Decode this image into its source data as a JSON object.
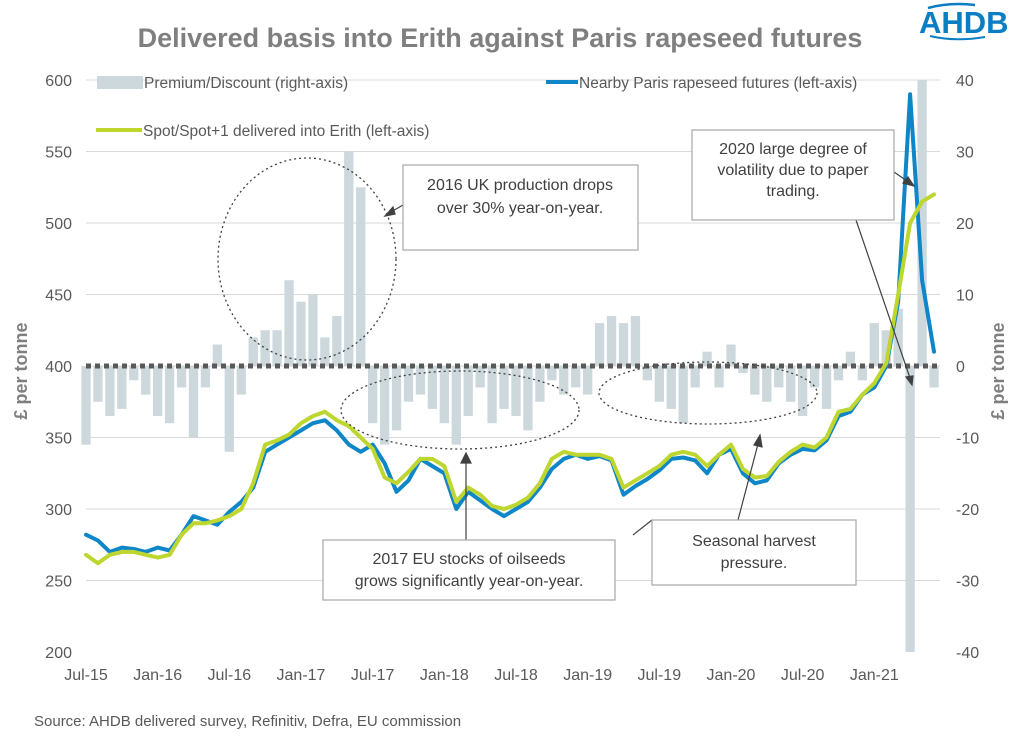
{
  "logo": {
    "text": "AHDB"
  },
  "source": "Source: AHDB delivered survey, Refinitiv, Defra, EU commission",
  "colors": {
    "futures": "#0e86c8",
    "delivered": "#bed62f",
    "premium": "#cdd8dd",
    "zero_line": "#595959",
    "gridline": "#d9d9d9",
    "annotation_border": "#a6a6a6"
  },
  "annotations": [
    {
      "lines": [
        "2016 UK production drops",
        "over 30% year-on-year."
      ]
    },
    {
      "lines": [
        "2020 large degree of",
        "volatility due to paper",
        "trading."
      ]
    },
    {
      "lines": [
        "2017 EU stocks of oilseeds",
        "grows significantly year-on-year."
      ]
    },
    {
      "lines": [
        "Seasonal harvest",
        "pressure."
      ]
    }
  ],
  "chart_data": {
    "type": "line",
    "title": "Delivered basis into Erith against Paris rapeseed futures",
    "ylabel": "£ per tonne",
    "y2label": "£ per tonne",
    "xlabel": "",
    "x_tick_labels": [
      "Jul-15",
      "Jan-16",
      "Jul-16",
      "Jan-17",
      "Jul-17",
      "Jan-18",
      "Jul-18",
      "Jan-19",
      "Jul-19",
      "Jan-20",
      "Jul-20",
      "Jan-21"
    ],
    "ylim": [
      200,
      600
    ],
    "y_ticks": [
      200,
      250,
      300,
      350,
      400,
      450,
      500,
      550,
      600
    ],
    "y2lim": [
      -40,
      40
    ],
    "y2_ticks": [
      -40,
      -30,
      -20,
      -10,
      0,
      10,
      20,
      30,
      40
    ],
    "grid": true,
    "legend_position": "top",
    "series": [
      {
        "name": "Premium/Discount (right-axis)",
        "type": "bar",
        "axis": "right",
        "x": [
          "2015-07",
          "2015-08",
          "2015-09",
          "2015-10",
          "2015-11",
          "2015-12",
          "2016-01",
          "2016-02",
          "2016-03",
          "2016-04",
          "2016-05",
          "2016-06",
          "2016-07",
          "2016-08",
          "2016-09",
          "2016-10",
          "2016-11",
          "2016-12",
          "2017-01",
          "2017-02",
          "2017-03",
          "2017-04",
          "2017-05",
          "2017-06",
          "2017-07",
          "2017-08",
          "2017-09",
          "2017-10",
          "2017-11",
          "2017-12",
          "2018-01",
          "2018-02",
          "2018-03",
          "2018-04",
          "2018-05",
          "2018-06",
          "2018-07",
          "2018-08",
          "2018-09",
          "2018-10",
          "2018-11",
          "2018-12",
          "2019-01",
          "2019-02",
          "2019-03",
          "2019-04",
          "2019-05",
          "2019-06",
          "2019-07",
          "2019-08",
          "2019-09",
          "2019-10",
          "2019-11",
          "2019-12",
          "2020-01",
          "2020-02",
          "2020-03",
          "2020-04",
          "2020-05",
          "2020-06",
          "2020-07",
          "2020-08",
          "2020-09",
          "2020-10",
          "2020-11",
          "2020-12",
          "2021-01",
          "2021-02",
          "2021-03",
          "2021-04",
          "2021-05",
          "2021-06"
        ],
        "values": [
          -11,
          -5,
          -7,
          -6,
          -2,
          -4,
          -7,
          -8,
          -3,
          -10,
          -3,
          3,
          -12,
          -4,
          4,
          5,
          5,
          12,
          9,
          10,
          4,
          7,
          30,
          25,
          -8,
          -11,
          -9,
          -5,
          -4,
          -6,
          -8,
          -11,
          -7,
          -3,
          -8,
          -6,
          -7,
          -9,
          -5,
          -2,
          -4,
          -3,
          -4,
          6,
          7,
          6,
          7,
          -2,
          -5,
          -6,
          -8,
          -3,
          2,
          -3,
          3,
          -1,
          -4,
          -5,
          -3,
          -5,
          -7,
          -3,
          -6,
          -2,
          2,
          -2,
          6,
          5,
          8,
          -40,
          40,
          -3
        ],
        "values_note": "monthly approximations"
      },
      {
        "name": "Nearby Paris rapeseed futures (left-axis)",
        "axis": "left",
        "x": [
          "2015-07",
          "2015-08",
          "2015-09",
          "2015-10",
          "2015-11",
          "2015-12",
          "2016-01",
          "2016-02",
          "2016-03",
          "2016-04",
          "2016-05",
          "2016-06",
          "2016-07",
          "2016-08",
          "2016-09",
          "2016-10",
          "2016-11",
          "2016-12",
          "2017-01",
          "2017-02",
          "2017-03",
          "2017-04",
          "2017-05",
          "2017-06",
          "2017-07",
          "2017-08",
          "2017-09",
          "2017-10",
          "2017-11",
          "2017-12",
          "2018-01",
          "2018-02",
          "2018-03",
          "2018-04",
          "2018-05",
          "2018-06",
          "2018-07",
          "2018-08",
          "2018-09",
          "2018-10",
          "2018-11",
          "2018-12",
          "2019-01",
          "2019-02",
          "2019-03",
          "2019-04",
          "2019-05",
          "2019-06",
          "2019-07",
          "2019-08",
          "2019-09",
          "2019-10",
          "2019-11",
          "2019-12",
          "2020-01",
          "2020-02",
          "2020-03",
          "2020-04",
          "2020-05",
          "2020-06",
          "2020-07",
          "2020-08",
          "2020-09",
          "2020-10",
          "2020-11",
          "2020-12",
          "2021-01",
          "2021-02",
          "2021-03",
          "2021-04",
          "2021-05",
          "2021-06"
        ],
        "values": [
          282,
          278,
          270,
          273,
          272,
          270,
          273,
          271,
          282,
          295,
          292,
          289,
          298,
          305,
          315,
          340,
          345,
          350,
          355,
          360,
          362,
          355,
          345,
          340,
          345,
          332,
          312,
          320,
          335,
          330,
          325,
          300,
          312,
          306,
          300,
          295,
          300,
          305,
          315,
          328,
          335,
          338,
          335,
          337,
          334,
          310,
          316,
          321,
          327,
          335,
          336,
          334,
          325,
          338,
          342,
          325,
          318,
          320,
          332,
          338,
          342,
          341,
          348,
          365,
          368,
          380,
          385,
          400,
          445,
          590,
          460,
          410
        ]
      },
      {
        "name": "Spot/Spot+1 delivered into Erith (left-axis)",
        "axis": "left",
        "x": [
          "2015-07",
          "2015-08",
          "2015-09",
          "2015-10",
          "2015-11",
          "2015-12",
          "2016-01",
          "2016-02",
          "2016-03",
          "2016-04",
          "2016-05",
          "2016-06",
          "2016-07",
          "2016-08",
          "2016-09",
          "2016-10",
          "2016-11",
          "2016-12",
          "2017-01",
          "2017-02",
          "2017-03",
          "2017-04",
          "2017-05",
          "2017-06",
          "2017-07",
          "2017-08",
          "2017-09",
          "2017-10",
          "2017-11",
          "2017-12",
          "2018-01",
          "2018-02",
          "2018-03",
          "2018-04",
          "2018-05",
          "2018-06",
          "2018-07",
          "2018-08",
          "2018-09",
          "2018-10",
          "2018-11",
          "2018-12",
          "2019-01",
          "2019-02",
          "2019-03",
          "2019-04",
          "2019-05",
          "2019-06",
          "2019-07",
          "2019-08",
          "2019-09",
          "2019-10",
          "2019-11",
          "2019-12",
          "2020-01",
          "2020-02",
          "2020-03",
          "2020-04",
          "2020-05",
          "2020-06",
          "2020-07",
          "2020-08",
          "2020-09",
          "2020-10",
          "2020-11",
          "2020-12",
          "2021-01",
          "2021-02",
          "2021-03",
          "2021-04",
          "2021-05",
          "2021-06"
        ],
        "values": [
          268,
          262,
          268,
          270,
          270,
          268,
          266,
          268,
          282,
          290,
          290,
          292,
          295,
          300,
          318,
          345,
          348,
          352,
          360,
          365,
          368,
          362,
          358,
          350,
          342,
          322,
          318,
          326,
          335,
          335,
          330,
          305,
          315,
          310,
          302,
          300,
          303,
          308,
          318,
          335,
          340,
          338,
          338,
          338,
          335,
          315,
          320,
          325,
          330,
          338,
          340,
          338,
          330,
          338,
          345,
          328,
          322,
          323,
          333,
          340,
          345,
          343,
          350,
          368,
          370,
          380,
          388,
          402,
          450,
          500,
          515,
          520
        ]
      }
    ]
  }
}
